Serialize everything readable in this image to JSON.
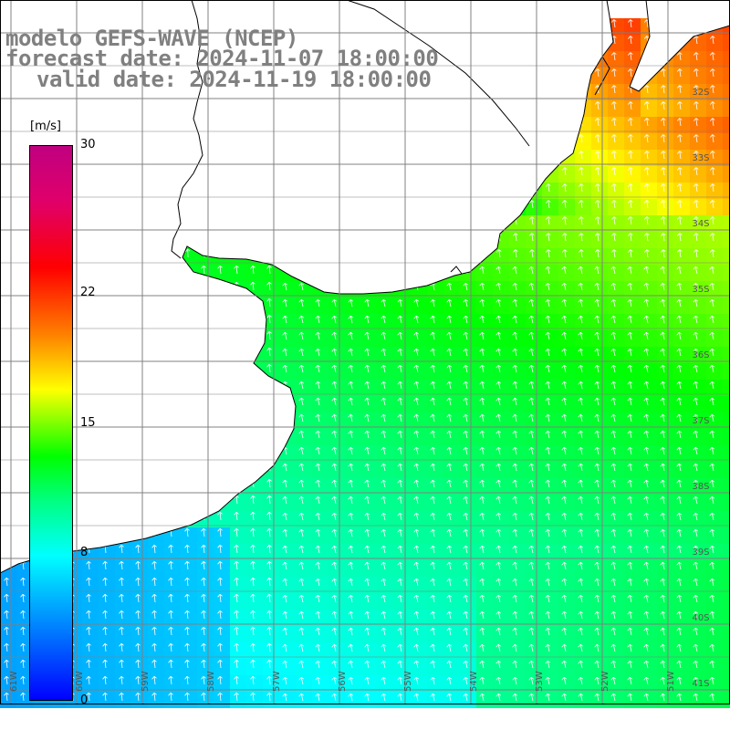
{
  "title": {
    "line1": "modelo GEFS-WAVE (NCEP)",
    "line2": "forecast date: 2024-11-07 18:00:00",
    "line3": "valid date: 2024-11-19 18:00:00"
  },
  "colorbar": {
    "unit": "[m/s]",
    "ticks": [
      "30",
      "22",
      "15",
      "8",
      "0"
    ],
    "tick_values": [
      30,
      22,
      15,
      8,
      0
    ]
  },
  "lat_labels": [
    "32S",
    "33S",
    "34S",
    "35S",
    "36S",
    "37S",
    "38S",
    "39S",
    "40S",
    "41S"
  ],
  "lon_labels": [
    "61W",
    "60W",
    "59W",
    "58W",
    "57W",
    "56W",
    "55W",
    "54W",
    "53W",
    "52W",
    "51W"
  ],
  "colors": {
    "grid": "#808080",
    "land": "#ffffff",
    "coast": "#000000",
    "title": "#808080",
    "arrows": "#ffffff"
  }
}
